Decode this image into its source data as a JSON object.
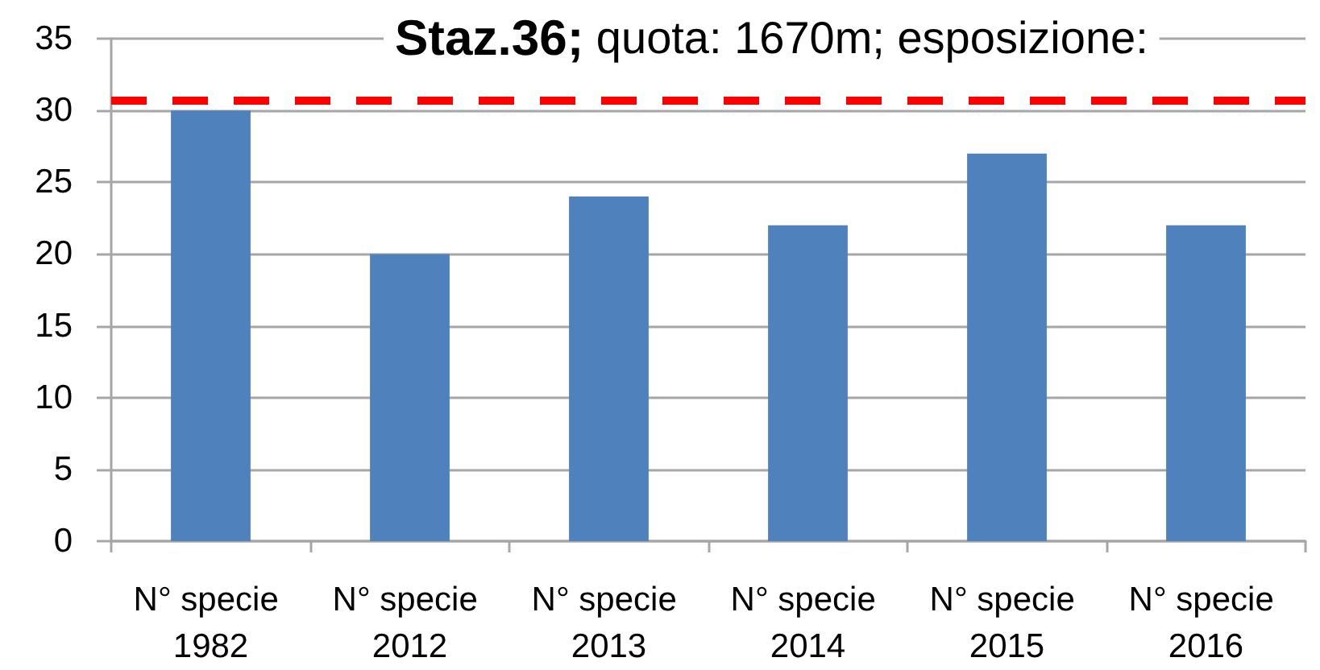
{
  "chart_data": {
    "type": "bar",
    "title": "Staz.36; quota: 1670m; esposizione:",
    "categories": [
      "N° specie 1982",
      "N° specie 2012",
      "N° specie 2013",
      "N° specie 2014",
      "N° specie 2015",
      "N° specie 2016"
    ],
    "values": [
      30,
      20,
      24,
      22,
      27,
      22
    ],
    "color": "#4f81bd",
    "ylim": [
      0,
      35
    ],
    "yticks": [
      0,
      5,
      10,
      15,
      20,
      25,
      30,
      35
    ],
    "grid": "y",
    "ref_lines": [
      {
        "axis": "y",
        "value": 30.7,
        "color": "#ff0000",
        "line_style": "dashed"
      }
    ]
  }
}
